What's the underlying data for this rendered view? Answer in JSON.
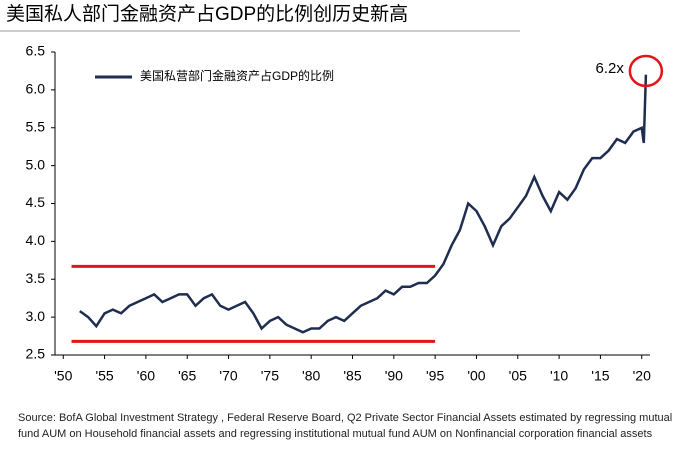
{
  "chart_data": {
    "type": "line",
    "title": "美国私人部门金融资产占GDP的比例创历史新高",
    "source": "Source:  BofA Global Investment Strategy , Federal Reserve Board, Q2 Private Sector Financial Assets estimated by regressing mutual fund AUM on Household financial assets and regressing institutional mutual fund AUM on Nonfinancial corporation financial assets",
    "x": [
      1952,
      1953,
      1954,
      1955,
      1956,
      1957,
      1958,
      1959,
      1960,
      1961,
      1962,
      1963,
      1964,
      1965,
      1966,
      1967,
      1968,
      1969,
      1970,
      1971,
      1972,
      1973,
      1974,
      1975,
      1976,
      1977,
      1978,
      1979,
      1980,
      1981,
      1982,
      1983,
      1984,
      1985,
      1986,
      1987,
      1988,
      1989,
      1990,
      1991,
      1992,
      1993,
      1994,
      1995,
      1996,
      1997,
      1998,
      1999,
      2000,
      2001,
      2002,
      2003,
      2004,
      2005,
      2006,
      2007,
      2008,
      2009,
      2010,
      2011,
      2012,
      2013,
      2014,
      2015,
      2016,
      2017,
      2018,
      2019,
      2020,
      2020.25,
      2020.5
    ],
    "series": [
      {
        "name": "美国私营部门金融资产占GDP的比例",
        "color": "#1f2d50",
        "values": [
          3.08,
          3.0,
          2.88,
          3.05,
          3.1,
          3.05,
          3.15,
          3.2,
          3.25,
          3.3,
          3.2,
          3.25,
          3.3,
          3.3,
          3.15,
          3.25,
          3.3,
          3.15,
          3.1,
          3.15,
          3.2,
          3.05,
          2.85,
          2.95,
          3.0,
          2.9,
          2.85,
          2.8,
          2.85,
          2.85,
          2.95,
          3.0,
          2.95,
          3.05,
          3.15,
          3.2,
          3.25,
          3.35,
          3.3,
          3.4,
          3.4,
          3.45,
          3.45,
          3.55,
          3.7,
          3.95,
          4.15,
          4.5,
          4.4,
          4.2,
          3.95,
          4.2,
          4.3,
          4.45,
          4.6,
          4.85,
          4.6,
          4.4,
          4.65,
          4.55,
          4.7,
          4.95,
          5.1,
          5.1,
          5.2,
          5.35,
          5.3,
          5.45,
          5.5,
          5.3,
          6.2
        ]
      }
    ],
    "xlim": [
      1949,
      2021
    ],
    "xticks": [
      {
        "value": 1950,
        "label": "'50"
      },
      {
        "value": 1955,
        "label": "'55"
      },
      {
        "value": 1960,
        "label": "'60"
      },
      {
        "value": 1965,
        "label": "'65"
      },
      {
        "value": 1970,
        "label": "'70"
      },
      {
        "value": 1975,
        "label": "'75"
      },
      {
        "value": 1980,
        "label": "'80"
      },
      {
        "value": 1985,
        "label": "'85"
      },
      {
        "value": 1990,
        "label": "'90"
      },
      {
        "value": 1995,
        "label": "'95"
      },
      {
        "value": 2000,
        "label": "'00"
      },
      {
        "value": 2005,
        "label": "'05"
      },
      {
        "value": 2010,
        "label": "'10"
      },
      {
        "value": 2015,
        "label": "'15"
      },
      {
        "value": 2020,
        "label": "'20"
      }
    ],
    "ylim": [
      2.5,
      6.5
    ],
    "yticks": [
      2.5,
      {
        "value": 3,
        "label": "3.0"
      },
      3.5,
      {
        "value": 4,
        "label": "4.0"
      },
      4.5,
      {
        "value": 5,
        "label": "5.0"
      },
      5.5,
      {
        "value": 6,
        "label": "6.0"
      },
      6.5
    ],
    "reference_lines": [
      {
        "y": 3.67,
        "x": [
          1951,
          1995
        ],
        "color": "#e3151a"
      },
      {
        "y": 2.68,
        "x": [
          1951,
          1995
        ],
        "color": "#e3151a"
      }
    ],
    "annotation": {
      "text": "6.2x",
      "x": 2020.5,
      "y": 6.25,
      "color": "#e3151a"
    },
    "legend": "upper left"
  }
}
